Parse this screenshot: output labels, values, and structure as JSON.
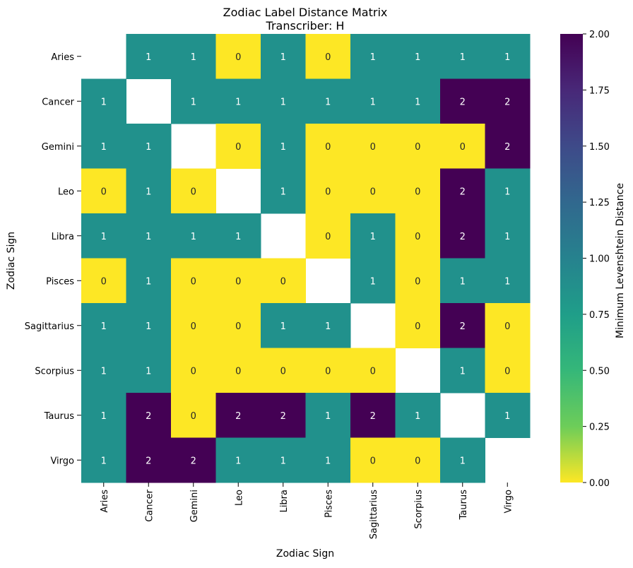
{
  "chart_data": {
    "type": "heatmap",
    "title": "Zodiac Label Distance Matrix",
    "subtitle": "Transcriber: H",
    "xlabel": "Zodiac Sign",
    "ylabel": "Zodiac Sign",
    "rows": [
      "Aries",
      "Cancer",
      "Gemini",
      "Leo",
      "Libra",
      "Pisces",
      "Sagittarius",
      "Scorpius",
      "Taurus",
      "Virgo"
    ],
    "cols": [
      "Aries",
      "Cancer",
      "Gemini",
      "Leo",
      "Libra",
      "Pisces",
      "Sagittarius",
      "Scorpius",
      "Taurus",
      "Virgo"
    ],
    "values": [
      [
        null,
        1,
        1,
        0,
        1,
        0,
        1,
        1,
        1,
        1
      ],
      [
        1,
        null,
        1,
        1,
        1,
        1,
        1,
        1,
        2,
        2
      ],
      [
        1,
        1,
        null,
        0,
        1,
        0,
        0,
        0,
        0,
        2
      ],
      [
        0,
        1,
        0,
        null,
        1,
        0,
        0,
        0,
        2,
        1
      ],
      [
        1,
        1,
        1,
        1,
        null,
        0,
        1,
        0,
        2,
        1
      ],
      [
        0,
        1,
        0,
        0,
        0,
        null,
        1,
        0,
        1,
        1
      ],
      [
        1,
        1,
        0,
        0,
        1,
        1,
        null,
        0,
        2,
        0
      ],
      [
        1,
        1,
        0,
        0,
        0,
        0,
        0,
        null,
        1,
        0
      ],
      [
        1,
        2,
        0,
        2,
        2,
        1,
        2,
        1,
        null,
        1
      ],
      [
        1,
        2,
        2,
        1,
        1,
        1,
        0,
        0,
        1,
        null
      ]
    ],
    "colorbar": {
      "label": "Minimum Levenshtein Distance",
      "range": [
        0,
        2
      ],
      "ticks": [
        "0.00",
        "0.25",
        "0.50",
        "0.75",
        "1.00",
        "1.25",
        "1.50",
        "1.75",
        "2.00"
      ],
      "colormap": "viridis_r"
    },
    "colors": {
      "low": "#fde725",
      "mid": "#21918c",
      "high": "#440154",
      "text_on_dark": "#ffffff",
      "text_on_light": "#262626"
    }
  }
}
